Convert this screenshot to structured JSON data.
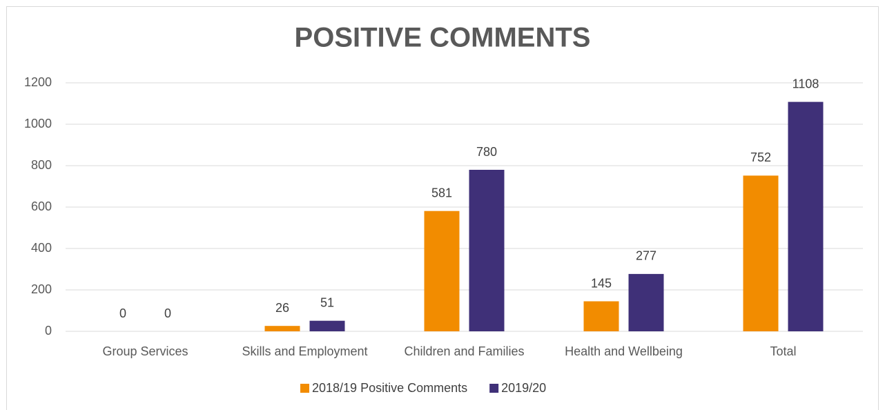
{
  "chart_data": {
    "type": "bar",
    "title": "POSITIVE COMMENTS",
    "categories": [
      "Group Services",
      "Skills and Employment",
      "Children and Families",
      "Health and Wellbeing",
      "Total"
    ],
    "series": [
      {
        "name": "2018/19 Positive Comments",
        "color": "#f28c00",
        "values": [
          0,
          26,
          581,
          145,
          752
        ]
      },
      {
        "name": "2019/20",
        "color": "#3f3078",
        "values": [
          0,
          51,
          780,
          277,
          1108
        ]
      }
    ],
    "ylim": [
      0,
      1200
    ],
    "yticks": [
      0,
      200,
      400,
      600,
      800,
      1000,
      1200
    ],
    "grid": true,
    "legend": "bottom",
    "data_labels": true
  }
}
